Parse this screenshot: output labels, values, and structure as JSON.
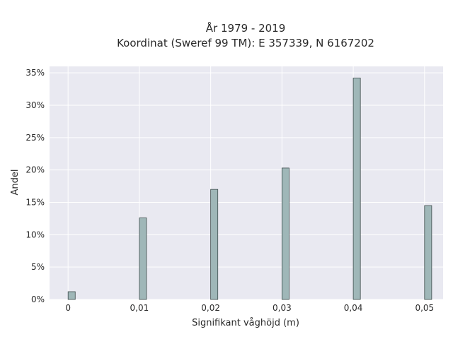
{
  "chart_data": {
    "type": "bar",
    "title_line1": "År 1979 - 2019",
    "title_line2": "Koordinat (Sweref 99 TM): E 357339, N 6167202",
    "xlabel": "Signifikant våghöjd (m)",
    "ylabel": "Andel",
    "x": [
      0,
      0.01,
      0.02,
      0.03,
      0.04,
      0.05
    ],
    "x_tick_labels": [
      "0",
      "0,01",
      "0,02",
      "0,03",
      "0,04",
      "0,05"
    ],
    "values": [
      1.2,
      12.6,
      17.0,
      20.3,
      34.2,
      14.5
    ],
    "y_ticks": [
      0,
      5,
      10,
      15,
      20,
      25,
      30,
      35
    ],
    "y_tick_labels": [
      "0%",
      "5%",
      "10%",
      "15%",
      "20%",
      "25%",
      "30%",
      "35%"
    ],
    "xlim": [
      -0.0026,
      0.0526
    ],
    "ylim": [
      0,
      36
    ],
    "grid": true,
    "colors": {
      "bar_fill": "#9fb7b8",
      "bar_edge": "#3c4a4a",
      "plot_bg": "#e9e9f1",
      "grid": "#ffffff"
    }
  }
}
